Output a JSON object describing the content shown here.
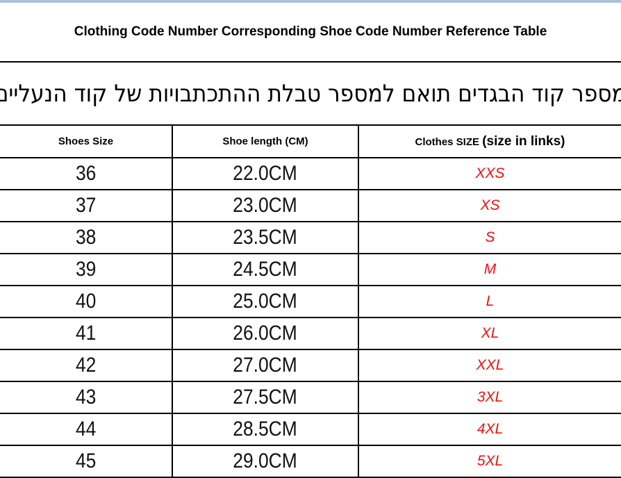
{
  "header": {
    "title": "Clothing Code Number Corresponding Shoe Code Number Reference Table",
    "subtitle_hebrew": "מספר קוד הבגדים תואם למספר טבלת ההתכתבויות של קוד הנעליים"
  },
  "colors": {
    "top_bar": "#a9c1da",
    "clothes_size_text": "#ee1111",
    "table_border": "#000000",
    "background": "#ffffff"
  },
  "table": {
    "columns": {
      "shoes_size": "Shoes Size",
      "shoe_length": "Shoe length (CM)",
      "clothes_size_main": "Clothes SIZE",
      "clothes_size_note": "(size in links)"
    },
    "rows": [
      {
        "shoes_size": "36",
        "shoe_length": "22.0CM",
        "clothes_size": "XXS"
      },
      {
        "shoes_size": "37",
        "shoe_length": "23.0CM",
        "clothes_size": "XS"
      },
      {
        "shoes_size": "38",
        "shoe_length": "23.5CM",
        "clothes_size": "S"
      },
      {
        "shoes_size": "39",
        "shoe_length": "24.5CM",
        "clothes_size": "M"
      },
      {
        "shoes_size": "40",
        "shoe_length": "25.0CM",
        "clothes_size": "L"
      },
      {
        "shoes_size": "41",
        "shoe_length": "26.0CM",
        "clothes_size": "XL"
      },
      {
        "shoes_size": "42",
        "shoe_length": "27.0CM",
        "clothes_size": "XXL"
      },
      {
        "shoes_size": "43",
        "shoe_length": "27.5CM",
        "clothes_size": "3XL"
      },
      {
        "shoes_size": "44",
        "shoe_length": "28.5CM",
        "clothes_size": "4XL"
      },
      {
        "shoes_size": "45",
        "shoe_length": "29.0CM",
        "clothes_size": "5XL"
      }
    ]
  }
}
